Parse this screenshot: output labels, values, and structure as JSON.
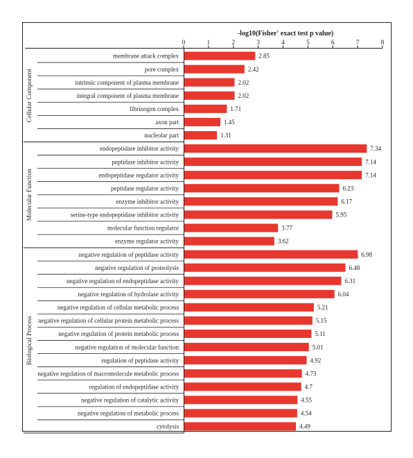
{
  "chart_data": {
    "type": "bar",
    "orientation": "horizontal",
    "title": "",
    "xlabel": "-log10(Fisher' exact test p value)",
    "ylabel": "",
    "xlim": [
      0,
      8
    ],
    "xticks": [
      "0",
      "1",
      "2",
      "3",
      "4",
      "5",
      "6",
      "7",
      "8"
    ],
    "axis_position": "top",
    "bar_color": "#e8372e",
    "grid": false,
    "legend": "none",
    "groups": [
      {
        "name": "Cellular Component",
        "categories": [
          "membrane attack complex",
          "pore complex",
          "intrinsic component of plasma membrane",
          "integral component of plasma membrane",
          "fibrinogen complex",
          "axon part",
          "nucleolar part"
        ],
        "values": [
          2.85,
          2.42,
          2.02,
          2.02,
          1.71,
          1.45,
          1.31
        ],
        "value_labels": [
          "2.85",
          "2.42",
          "2.02",
          "2.02",
          "1.71",
          "1.45",
          "1.31"
        ]
      },
      {
        "name": "Molecular Function",
        "categories": [
          "endopeptidase inhibitor activity",
          "peptidase inhibitor activity",
          "endopeptidase regulator activity",
          "peptidase regulator activity",
          "enzyme inhibitor activity",
          "serine-type endopeptidase inhibitor activity",
          "molecular function regulator",
          "enzyme regulator activity"
        ],
        "values": [
          7.34,
          7.14,
          7.14,
          6.23,
          6.17,
          5.95,
          3.77,
          3.62
        ],
        "value_labels": [
          "7.34",
          "7.14",
          "7.14",
          "6.23",
          "6.17",
          "5.95",
          "3.77",
          "3.62"
        ]
      },
      {
        "name": "Biological Process",
        "categories": [
          "negative regulation of peptidase activity",
          "negative regulation of proteolysis",
          "negative regulation of endopeptidase activity",
          "negative regulation of hydrolase activity",
          "negative regulation of cellular metabolic process",
          "negative regulation of cellular protein metabolic process",
          "negative regulation of protein metabolic process",
          "negative regulation of molecular function",
          "regulation of peptidase activity",
          "negative regulation of macromolecule metabolic process",
          "regulation of endopeptidase activity",
          "negative regulation of catalytic activity",
          "negative regulation of metabolic process",
          "cytolysis"
        ],
        "values": [
          6.98,
          6.48,
          6.31,
          6.04,
          5.21,
          5.15,
          5.11,
          5.01,
          4.92,
          4.73,
          4.7,
          4.55,
          4.54,
          4.49
        ],
        "value_labels": [
          "6.98",
          "6.48",
          "6.31",
          "6.04",
          "5.21",
          "5.15",
          "5.11",
          "5.01",
          "4.92",
          "4.73",
          "4.7",
          "4.55",
          "4.54",
          "4.49"
        ]
      }
    ]
  }
}
